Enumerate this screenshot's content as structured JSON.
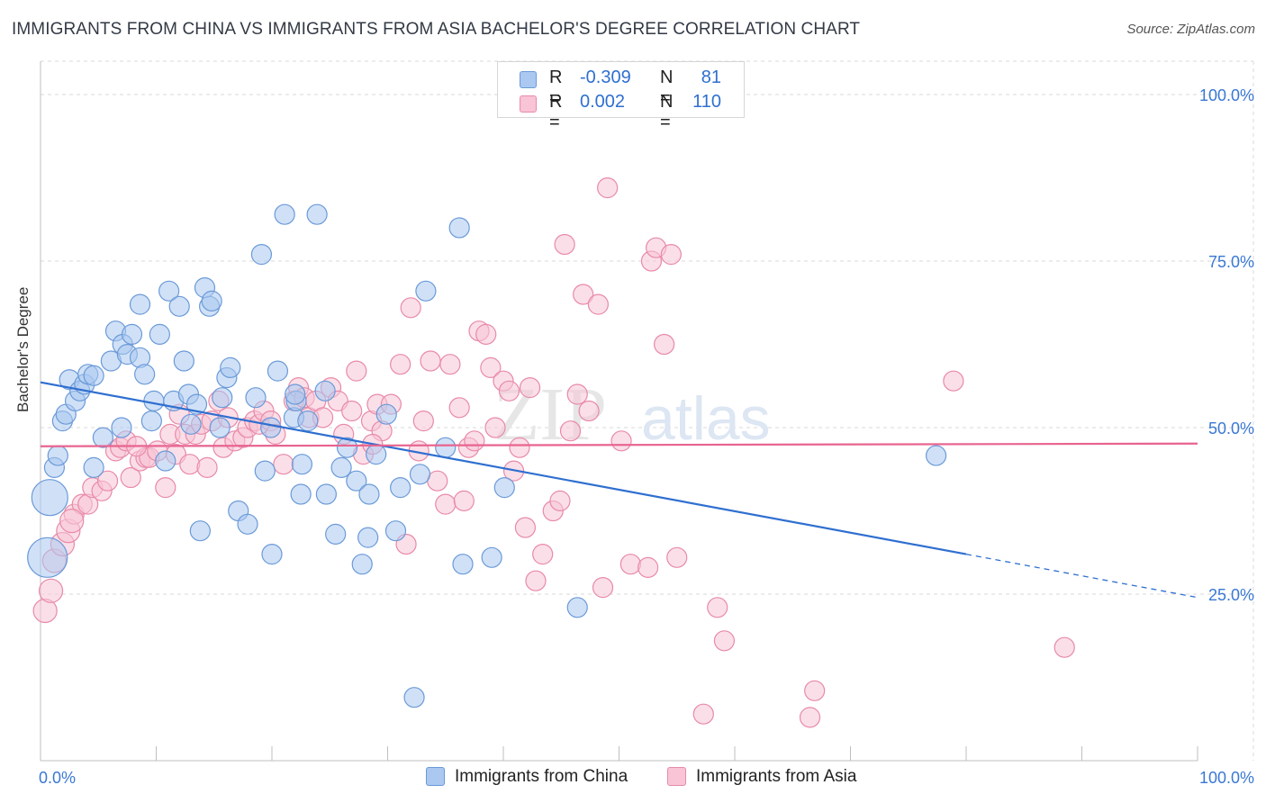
{
  "header": {
    "title": "IMMIGRANTS FROM CHINA VS IMMIGRANTS FROM ASIA BACHELOR'S DEGREE CORRELATION CHART",
    "source": "Source: ZipAtlas.com"
  },
  "stats": [
    {
      "r_label": "R =",
      "r_value": "-0.309",
      "n_label": "N =",
      "n_value": "81",
      "color": "#aac8f0",
      "border": "#6b9ad8"
    },
    {
      "r_label": "R =",
      "r_value": "0.002",
      "n_label": "N =",
      "n_value": "110",
      "color": "#f8c4d6",
      "border": "#e88aa8"
    }
  ],
  "watermark": {
    "part1": "ZIP",
    "part2": "atlas"
  },
  "chart_data": {
    "type": "scatter",
    "title": "IMMIGRANTS FROM CHINA VS IMMIGRANTS FROM ASIA BACHELOR'S DEGREE CORRELATION CHART",
    "xlabel": "",
    "ylabel": "Bachelor's Degree",
    "xlim": [
      0,
      100
    ],
    "ylim": [
      0,
      105
    ],
    "x_tick_labels": [
      "0.0%",
      "100.0%"
    ],
    "y_ticks": [
      25,
      50,
      75,
      100
    ],
    "y_tick_labels": [
      "25.0%",
      "50.0%",
      "75.0%",
      "100.0%"
    ],
    "grid": true,
    "legend_position": "bottom-center",
    "series": [
      {
        "name": "Immigrants from China",
        "color": "#aac8f0",
        "stroke": "#6b9ad8",
        "line_color": "#2f6fd0",
        "trend": {
          "x0": 0,
          "y0": 56.8,
          "x1": 80,
          "y1": 31.0,
          "dashed_to_x": 100,
          "dashed_to_y": 24.5
        },
        "points": [
          [
            0.6,
            30.5
          ],
          [
            0.8,
            39.5
          ],
          [
            1.2,
            44.0
          ],
          [
            1.5,
            45.8
          ],
          [
            1.9,
            51.0
          ],
          [
            2.2,
            52.0
          ],
          [
            2.5,
            57.2
          ],
          [
            3.0,
            54.0
          ],
          [
            3.4,
            55.5
          ],
          [
            3.8,
            56.5
          ],
          [
            4.1,
            58.0
          ],
          [
            4.6,
            57.8
          ],
          [
            4.6,
            44.0
          ],
          [
            5.4,
            48.5
          ],
          [
            6.1,
            60.0
          ],
          [
            6.5,
            64.5
          ],
          [
            7.0,
            50.0
          ],
          [
            7.1,
            62.5
          ],
          [
            7.5,
            61.0
          ],
          [
            7.9,
            64.0
          ],
          [
            8.6,
            60.5
          ],
          [
            8.6,
            68.5
          ],
          [
            9.0,
            58.0
          ],
          [
            9.6,
            51.0
          ],
          [
            9.8,
            54.0
          ],
          [
            10.3,
            64.0
          ],
          [
            10.8,
            45.0
          ],
          [
            11.1,
            70.5
          ],
          [
            11.5,
            54.0
          ],
          [
            12.0,
            68.2
          ],
          [
            12.4,
            60.0
          ],
          [
            12.8,
            55.0
          ],
          [
            13.0,
            50.5
          ],
          [
            13.5,
            53.5
          ],
          [
            13.8,
            34.5
          ],
          [
            14.2,
            71.0
          ],
          [
            14.6,
            68.2
          ],
          [
            14.8,
            69.0
          ],
          [
            15.5,
            50.0
          ],
          [
            15.7,
            54.5
          ],
          [
            16.1,
            57.5
          ],
          [
            16.4,
            59.0
          ],
          [
            17.1,
            37.5
          ],
          [
            17.9,
            35.5
          ],
          [
            18.6,
            54.5
          ],
          [
            19.1,
            76.0
          ],
          [
            19.4,
            43.5
          ],
          [
            19.9,
            50.0
          ],
          [
            20.0,
            31.0
          ],
          [
            20.5,
            58.5
          ],
          [
            21.1,
            82.0
          ],
          [
            21.9,
            51.5
          ],
          [
            22.1,
            54.0
          ],
          [
            22.5,
            40.0
          ],
          [
            22.6,
            44.5
          ],
          [
            23.1,
            51.0
          ],
          [
            23.9,
            82.0
          ],
          [
            24.7,
            40.0
          ],
          [
            24.6,
            55.5
          ],
          [
            25.5,
            34.0
          ],
          [
            26.0,
            44.0
          ],
          [
            26.5,
            47.0
          ],
          [
            27.3,
            42.0
          ],
          [
            27.8,
            29.5
          ],
          [
            28.4,
            40.0
          ],
          [
            28.3,
            33.5
          ],
          [
            29.0,
            46.0
          ],
          [
            29.9,
            52.0
          ],
          [
            30.7,
            34.5
          ],
          [
            31.1,
            41.0
          ],
          [
            32.3,
            9.5
          ],
          [
            32.8,
            43.0
          ],
          [
            33.3,
            70.5
          ],
          [
            35.0,
            47.0
          ],
          [
            36.2,
            80.0
          ],
          [
            36.5,
            29.5
          ],
          [
            39.0,
            30.5
          ],
          [
            40.1,
            41.0
          ],
          [
            46.4,
            23.0
          ],
          [
            77.4,
            45.8
          ],
          [
            22.0,
            55.0
          ]
        ],
        "sizes": [
          22,
          20,
          11,
          11,
          11,
          11,
          11,
          11,
          11,
          11,
          11,
          11,
          11,
          11,
          11,
          11,
          11,
          11,
          11,
          11,
          11,
          11,
          11,
          11,
          11,
          11,
          11,
          11,
          11,
          11,
          11,
          11,
          11,
          11,
          11,
          11,
          11,
          11,
          11,
          11,
          11,
          11,
          11,
          11,
          11,
          11,
          11,
          11,
          11,
          11,
          11,
          11,
          11,
          11,
          11,
          11,
          11,
          11,
          11,
          11,
          11,
          11,
          11,
          11,
          11,
          11,
          11,
          11,
          11,
          11,
          11,
          11,
          11,
          11,
          11,
          11,
          11,
          11,
          11,
          11,
          11
        ]
      },
      {
        "name": "Immigrants from Asia",
        "color": "#f8c4d6",
        "stroke": "#e88aa8",
        "line_color": "#e8648f",
        "trend": {
          "x0": 0,
          "y0": 47.2,
          "x1": 100,
          "y1": 47.6
        },
        "points": [
          [
            0.4,
            22.5
          ],
          [
            0.9,
            25.5
          ],
          [
            1.2,
            30.0
          ],
          [
            1.9,
            32.5
          ],
          [
            2.4,
            34.5
          ],
          [
            2.9,
            37.0
          ],
          [
            3.6,
            38.5
          ],
          [
            4.1,
            38.5
          ],
          [
            4.5,
            41.0
          ],
          [
            5.3,
            40.5
          ],
          [
            5.8,
            42.0
          ],
          [
            6.5,
            46.5
          ],
          [
            6.9,
            47.0
          ],
          [
            7.4,
            48.0
          ],
          [
            7.8,
            42.5
          ],
          [
            8.6,
            45.0
          ],
          [
            9.1,
            45.5
          ],
          [
            9.4,
            45.5
          ],
          [
            10.1,
            46.5
          ],
          [
            10.8,
            41.0
          ],
          [
            11.2,
            49.0
          ],
          [
            11.7,
            46.0
          ],
          [
            12.0,
            52.0
          ],
          [
            12.5,
            49.0
          ],
          [
            12.9,
            44.5
          ],
          [
            13.4,
            49.0
          ],
          [
            13.9,
            50.5
          ],
          [
            14.4,
            44.0
          ],
          [
            14.8,
            51.0
          ],
          [
            15.4,
            54.0
          ],
          [
            15.8,
            47.0
          ],
          [
            16.2,
            51.5
          ],
          [
            16.8,
            48.0
          ],
          [
            17.5,
            48.5
          ],
          [
            17.9,
            50.0
          ],
          [
            18.5,
            51.0
          ],
          [
            18.9,
            50.5
          ],
          [
            19.3,
            52.5
          ],
          [
            19.9,
            51.0
          ],
          [
            20.3,
            49.0
          ],
          [
            21.0,
            44.5
          ],
          [
            21.9,
            54.0
          ],
          [
            22.3,
            56.0
          ],
          [
            22.8,
            54.5
          ],
          [
            23.2,
            51.5
          ],
          [
            23.8,
            54.0
          ],
          [
            24.4,
            51.5
          ],
          [
            25.1,
            56.0
          ],
          [
            25.7,
            54.0
          ],
          [
            26.2,
            49.0
          ],
          [
            26.9,
            52.5
          ],
          [
            27.3,
            58.5
          ],
          [
            27.9,
            46.0
          ],
          [
            28.6,
            51.0
          ],
          [
            29.1,
            53.5
          ],
          [
            29.5,
            49.5
          ],
          [
            30.3,
            53.5
          ],
          [
            31.1,
            59.5
          ],
          [
            31.6,
            32.5
          ],
          [
            32.0,
            68.0
          ],
          [
            32.7,
            46.5
          ],
          [
            33.1,
            51.0
          ],
          [
            33.7,
            60.0
          ],
          [
            34.3,
            42.0
          ],
          [
            35.0,
            38.5
          ],
          [
            35.4,
            59.5
          ],
          [
            36.2,
            53.0
          ],
          [
            36.6,
            39.0
          ],
          [
            37.0,
            47.0
          ],
          [
            37.5,
            48.0
          ],
          [
            37.9,
            64.5
          ],
          [
            38.5,
            64.0
          ],
          [
            38.9,
            59.0
          ],
          [
            39.3,
            50.0
          ],
          [
            40.0,
            57.0
          ],
          [
            40.5,
            55.5
          ],
          [
            40.9,
            43.5
          ],
          [
            41.4,
            47.0
          ],
          [
            41.9,
            35.0
          ],
          [
            42.3,
            56.0
          ],
          [
            42.8,
            27.0
          ],
          [
            43.4,
            31.0
          ],
          [
            44.3,
            37.5
          ],
          [
            44.9,
            39.0
          ],
          [
            45.3,
            77.5
          ],
          [
            45.8,
            49.5
          ],
          [
            46.4,
            55.0
          ],
          [
            46.9,
            70.0
          ],
          [
            47.4,
            52.5
          ],
          [
            48.2,
            68.5
          ],
          [
            48.6,
            26.0
          ],
          [
            49.0,
            86.0
          ],
          [
            50.2,
            48.0
          ],
          [
            51.0,
            29.5
          ],
          [
            52.5,
            29.0
          ],
          [
            52.8,
            75.0
          ],
          [
            53.2,
            77.0
          ],
          [
            53.9,
            62.5
          ],
          [
            54.5,
            76.0
          ],
          [
            55.0,
            30.5
          ],
          [
            57.3,
            7.0
          ],
          [
            58.5,
            23.0
          ],
          [
            59.1,
            18.0
          ],
          [
            66.5,
            6.5
          ],
          [
            66.9,
            10.5
          ],
          [
            78.9,
            57.0
          ],
          [
            88.5,
            17.0
          ],
          [
            2.7,
            36.0
          ],
          [
            8.3,
            47.2
          ],
          [
            28.7,
            47.5
          ]
        ],
        "sizes": [
          13,
          13,
          13,
          13,
          13,
          11,
          11,
          11,
          11,
          11,
          11,
          11,
          11,
          11,
          11,
          11,
          11,
          11,
          11,
          11,
          11,
          11,
          11,
          11,
          11,
          11,
          11,
          11,
          11,
          11,
          11,
          11,
          11,
          11,
          11,
          11,
          11,
          11,
          11,
          11,
          11,
          11,
          11,
          11,
          11,
          11,
          11,
          11,
          11,
          11,
          11,
          11,
          11,
          11,
          11,
          11,
          11,
          11,
          11,
          11,
          11,
          11,
          11,
          11,
          11,
          11,
          11,
          11,
          11,
          11,
          11,
          11,
          11,
          11,
          11,
          11,
          11,
          11,
          11,
          11,
          11,
          11,
          11,
          11,
          11,
          11,
          11,
          11,
          11,
          11,
          11,
          11,
          11,
          11,
          11,
          11,
          11,
          11,
          11,
          11,
          11,
          11,
          11,
          11,
          11,
          11,
          11,
          13,
          11,
          11
        ]
      }
    ]
  }
}
